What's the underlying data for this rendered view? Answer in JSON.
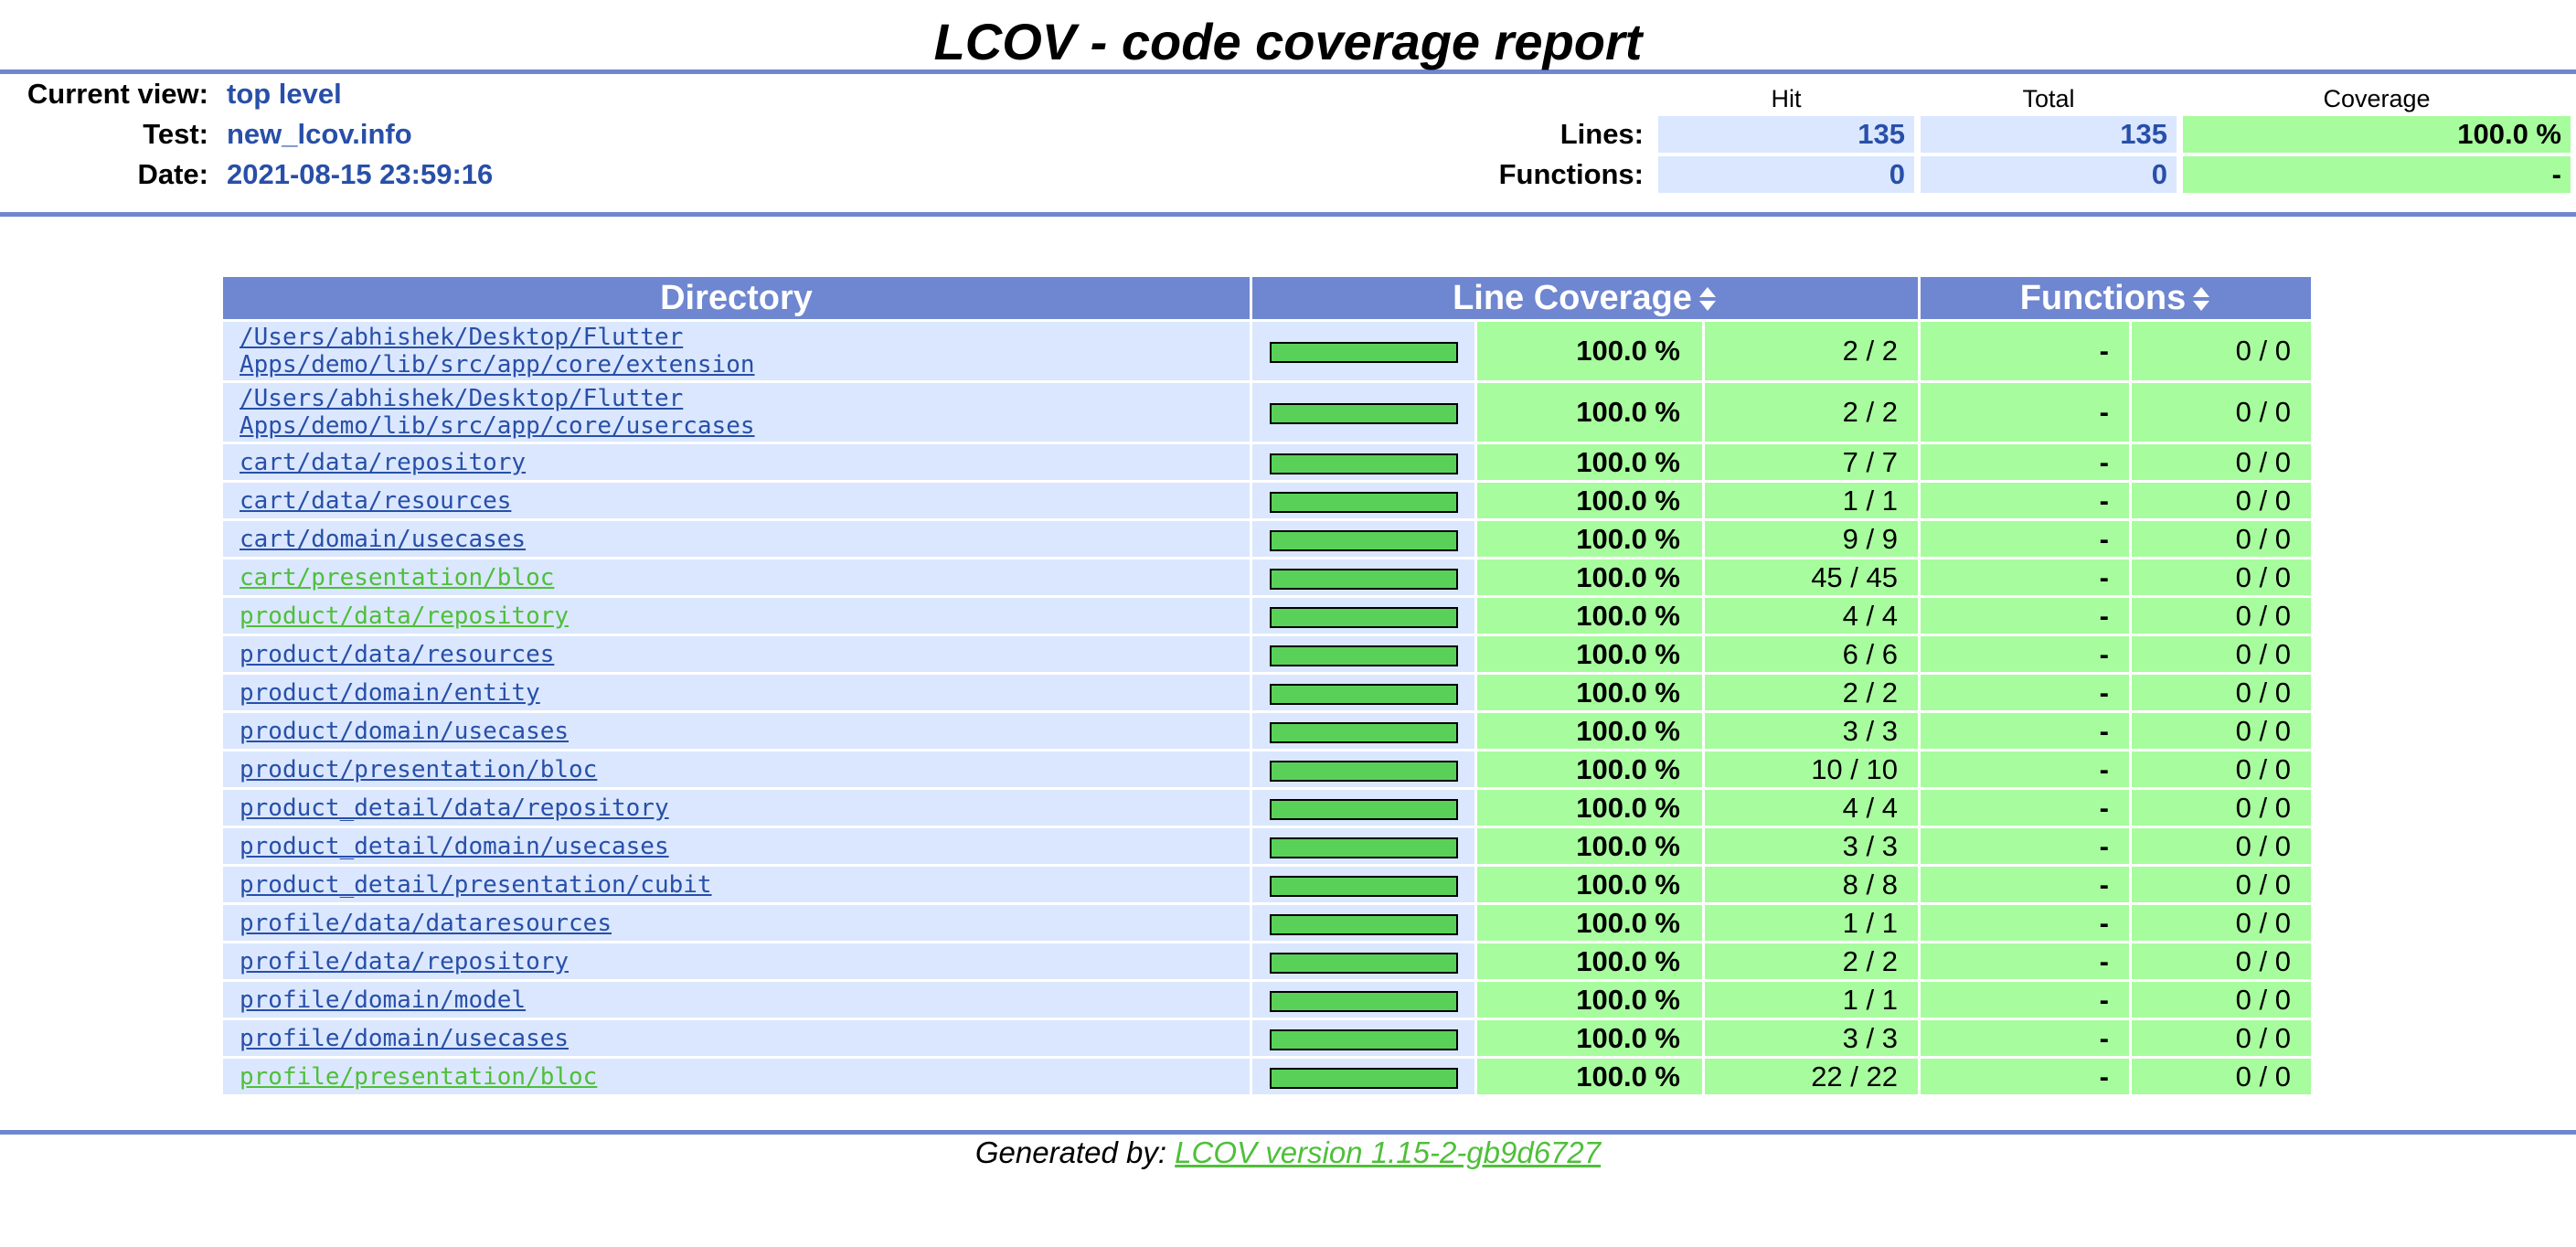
{
  "title": "LCOV - code coverage report",
  "info": {
    "current_view_label": "Current view:",
    "current_view_value": "top level",
    "test_label": "Test:",
    "test_value": "new_lcov.info",
    "date_label": "Date:",
    "date_value": "2021-08-15 23:59:16"
  },
  "summary": {
    "hit_header": "Hit",
    "total_header": "Total",
    "coverage_header": "Coverage",
    "lines_label": "Lines:",
    "lines_hit": "135",
    "lines_total": "135",
    "lines_coverage": "100.0 %",
    "functions_label": "Functions:",
    "functions_hit": "0",
    "functions_total": "0",
    "functions_coverage": "-"
  },
  "table": {
    "col_directory": "Directory",
    "col_line_coverage": "Line Coverage",
    "col_functions": "Functions",
    "rows": [
      {
        "dir_line1": "/Users/abhishek/Desktop/Flutter",
        "dir_line2": "Apps/demo/lib/src/app/core/extension",
        "coverage": 1.0,
        "pct": "100.0 %",
        "lines": "2 / 2",
        "fpct": "-",
        "fnum": "0 / 0"
      },
      {
        "dir_line1": "/Users/abhishek/Desktop/Flutter",
        "dir_line2": "Apps/demo/lib/src/app/core/usercases",
        "coverage": 1.0,
        "pct": "100.0 %",
        "lines": "2 / 2",
        "fpct": "-",
        "fnum": "0 / 0"
      },
      {
        "dir_line1": "cart/data/repository",
        "coverage": 1.0,
        "pct": "100.0 %",
        "lines": "7 / 7",
        "fpct": "-",
        "fnum": "0 / 0"
      },
      {
        "dir_line1": "cart/data/resources",
        "coverage": 1.0,
        "pct": "100.0 %",
        "lines": "1 / 1",
        "fpct": "-",
        "fnum": "0 / 0"
      },
      {
        "dir_line1": "cart/domain/usecases",
        "coverage": 1.0,
        "pct": "100.0 %",
        "lines": "9 / 9",
        "fpct": "-",
        "fnum": "0 / 0"
      },
      {
        "dir_line1": "cart/presentation/bloc",
        "visited": true,
        "coverage": 1.0,
        "pct": "100.0 %",
        "lines": "45 / 45",
        "fpct": "-",
        "fnum": "0 / 0"
      },
      {
        "dir_line1": "product/data/repository",
        "visited": true,
        "coverage": 1.0,
        "pct": "100.0 %",
        "lines": "4 / 4",
        "fpct": "-",
        "fnum": "0 / 0"
      },
      {
        "dir_line1": "product/data/resources",
        "coverage": 1.0,
        "pct": "100.0 %",
        "lines": "6 / 6",
        "fpct": "-",
        "fnum": "0 / 0"
      },
      {
        "dir_line1": "product/domain/entity",
        "coverage": 1.0,
        "pct": "100.0 %",
        "lines": "2 / 2",
        "fpct": "-",
        "fnum": "0 / 0"
      },
      {
        "dir_line1": "product/domain/usecases",
        "coverage": 1.0,
        "pct": "100.0 %",
        "lines": "3 / 3",
        "fpct": "-",
        "fnum": "0 / 0"
      },
      {
        "dir_line1": "product/presentation/bloc",
        "coverage": 1.0,
        "pct": "100.0 %",
        "lines": "10 / 10",
        "fpct": "-",
        "fnum": "0 / 0"
      },
      {
        "dir_line1": "product_detail/data/repository",
        "coverage": 1.0,
        "pct": "100.0 %",
        "lines": "4 / 4",
        "fpct": "-",
        "fnum": "0 / 0"
      },
      {
        "dir_line1": "product_detail/domain/usecases",
        "coverage": 1.0,
        "pct": "100.0 %",
        "lines": "3 / 3",
        "fpct": "-",
        "fnum": "0 / 0"
      },
      {
        "dir_line1": "product_detail/presentation/cubit",
        "coverage": 1.0,
        "pct": "100.0 %",
        "lines": "8 / 8",
        "fpct": "-",
        "fnum": "0 / 0"
      },
      {
        "dir_line1": "profile/data/dataresources",
        "coverage": 1.0,
        "pct": "100.0 %",
        "lines": "1 / 1",
        "fpct": "-",
        "fnum": "0 / 0"
      },
      {
        "dir_line1": "profile/data/repository",
        "coverage": 1.0,
        "pct": "100.0 %",
        "lines": "2 / 2",
        "fpct": "-",
        "fnum": "0 / 0"
      },
      {
        "dir_line1": "profile/domain/model",
        "coverage": 1.0,
        "pct": "100.0 %",
        "lines": "1 / 1",
        "fpct": "-",
        "fnum": "0 / 0"
      },
      {
        "dir_line1": "profile/domain/usecases",
        "coverage": 1.0,
        "pct": "100.0 %",
        "lines": "3 / 3",
        "fpct": "-",
        "fnum": "0 / 0"
      },
      {
        "dir_line1": "profile/presentation/bloc",
        "visited": true,
        "coverage": 1.0,
        "pct": "100.0 %",
        "lines": "22 / 22",
        "fpct": "-",
        "fnum": "0 / 0"
      }
    ]
  },
  "footer": {
    "prefix": "Generated by: ",
    "link_text": "LCOV version 1.15-2-gb9d6727"
  },
  "colors": {
    "rule": "#6f86d0",
    "row_bg": "#dae7fe",
    "hit_bg": "#a7fc9d",
    "bar_fill": "#59d159",
    "link": "#284fa8",
    "visited_link": "#4fbf3a"
  }
}
